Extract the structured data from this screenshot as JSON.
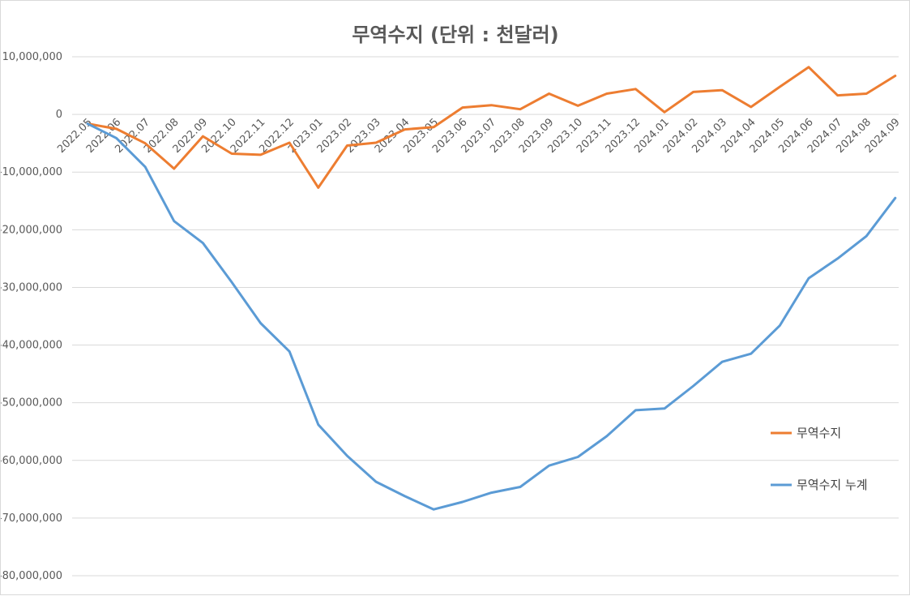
{
  "chart_data": {
    "type": "line",
    "title": "무역수지 (단위 : 천달러)",
    "xlabel": "",
    "ylabel": "",
    "ylim": [
      -80000000,
      10000000
    ],
    "yticks": [
      10000000,
      0,
      -10000000,
      -20000000,
      -30000000,
      -40000000,
      -50000000,
      -60000000,
      -70000000,
      -80000000
    ],
    "ytick_labels": [
      "10,000,000",
      "0",
      "-10,000,000",
      "-20,000,000",
      "-30,000,000",
      "-40,000,000",
      "-50,000,000",
      "-60,000,000",
      "-70,000,000",
      "-80,000,000"
    ],
    "grid": true,
    "legend_position": "right",
    "categories": [
      "2022.05",
      "2022.06",
      "2022.07",
      "2022.08",
      "2022.09",
      "2022.10",
      "2022.11",
      "2022.12",
      "2023.01",
      "2023.02",
      "2023.03",
      "2023.04",
      "2023.05",
      "2023.06",
      "2023.07",
      "2023.08",
      "2023.09",
      "2023.10",
      "2023.11",
      "2023.12",
      "2024.01",
      "2024.02",
      "2024.03",
      "2024.04",
      "2024.05",
      "2024.06",
      "2024.07",
      "2024.08",
      "2024.09"
    ],
    "series": [
      {
        "name": "무역수지",
        "color": "#ed7d31",
        "values": [
          -1600000,
          -2500000,
          -5000000,
          -9400000,
          -3800000,
          -6800000,
          -7000000,
          -4900000,
          -12700000,
          -5400000,
          -4900000,
          -2600000,
          -2200000,
          1200000,
          1600000,
          900000,
          3600000,
          1500000,
          3600000,
          4400000,
          400000,
          3900000,
          4200000,
          1300000,
          4800000,
          8200000,
          3300000,
          3600000,
          6700000
        ]
      },
      {
        "name": "무역수지 누계",
        "color": "#5b9bd5",
        "values": [
          -1600000,
          -4100000,
          -9100000,
          -18500000,
          -22300000,
          -29100000,
          -36200000,
          -41100000,
          -53800000,
          -59200000,
          -63700000,
          -66200000,
          -68500000,
          -67200000,
          -65600000,
          -64600000,
          -60900000,
          -59400000,
          -55800000,
          -51300000,
          -51000000,
          -47100000,
          -42900000,
          -41500000,
          -36600000,
          -28400000,
          -25000000,
          -21100000,
          -14500000
        ]
      }
    ]
  }
}
